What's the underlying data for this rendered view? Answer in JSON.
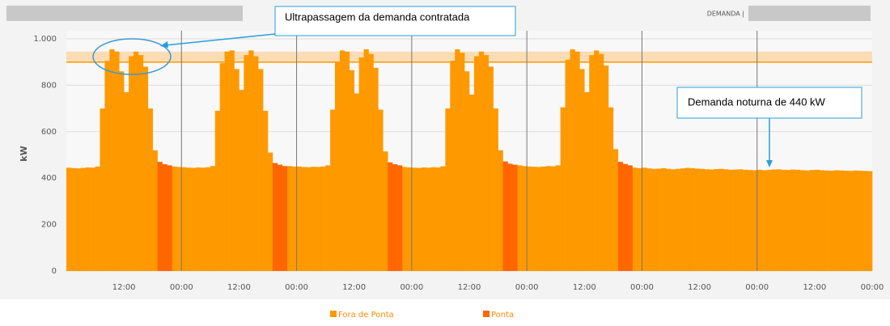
{
  "header": {
    "demand_label": "DEMANDA |"
  },
  "chart_data": {
    "type": "bar",
    "ylabel": "kW",
    "xlim": [
      0,
      168
    ],
    "ylim": [
      0,
      1000
    ],
    "yticks": [
      0,
      200,
      400,
      600,
      800,
      {
        "value": 1000,
        "label": "1.000"
      }
    ],
    "xticks": [
      {
        "value": 12,
        "label": "12:00"
      },
      {
        "value": 24,
        "label": "00:00"
      },
      {
        "value": 36,
        "label": "12:00"
      },
      {
        "value": 48,
        "label": "00:00"
      },
      {
        "value": 60,
        "label": "12:00"
      },
      {
        "value": 72,
        "label": "00:00"
      },
      {
        "value": 84,
        "label": "12:00"
      },
      {
        "value": 96,
        "label": "00:00"
      },
      {
        "value": 108,
        "label": "12:00"
      },
      {
        "value": 120,
        "label": "00:00"
      },
      {
        "value": 132,
        "label": "12:00"
      },
      {
        "value": 144,
        "label": "00:00"
      },
      {
        "value": 156,
        "label": "12:00"
      },
      {
        "value": 168,
        "label": "00:00"
      }
    ],
    "grid": true,
    "reference_line": 900,
    "band": [
      900,
      945
    ],
    "annotations": [
      "Ultrapassagem da demanda contratada",
      "Demanda noturna de 440 kW"
    ],
    "x": [
      0,
      1,
      2,
      3,
      4,
      5,
      6,
      7,
      8,
      9,
      10,
      11,
      12,
      13,
      14,
      15,
      16,
      17,
      18,
      19,
      20,
      21,
      22,
      23,
      24,
      25,
      26,
      27,
      28,
      29,
      30,
      31,
      32,
      33,
      34,
      35,
      36,
      37,
      38,
      39,
      40,
      41,
      42,
      43,
      44,
      45,
      46,
      47,
      48,
      49,
      50,
      51,
      52,
      53,
      54,
      55,
      56,
      57,
      58,
      59,
      60,
      61,
      62,
      63,
      64,
      65,
      66,
      67,
      68,
      69,
      70,
      71,
      72,
      73,
      74,
      75,
      76,
      77,
      78,
      79,
      80,
      81,
      82,
      83,
      84,
      85,
      86,
      87,
      88,
      89,
      90,
      91,
      92,
      93,
      94,
      95,
      96,
      97,
      98,
      99,
      100,
      101,
      102,
      103,
      104,
      105,
      106,
      107,
      108,
      109,
      110,
      111,
      112,
      113,
      114,
      115,
      116,
      117,
      118,
      119,
      120,
      121,
      122,
      123,
      124,
      125,
      126,
      127,
      128,
      129,
      130,
      131,
      132,
      133,
      134,
      135,
      136,
      137,
      138,
      139,
      140,
      141,
      142,
      143,
      144,
      145,
      146,
      147,
      148,
      149,
      150,
      151,
      152,
      153,
      154,
      155,
      156,
      157,
      158,
      159,
      160,
      161,
      162,
      163,
      164,
      165,
      166,
      167
    ],
    "series": [
      {
        "name": "Fora de Ponta",
        "color": "#ff9900",
        "values": [
          445,
          443,
          442,
          444,
          446,
          445,
          450,
          700,
          905,
          955,
          945,
          860,
          770,
          925,
          945,
          930,
          880,
          700,
          520,
          null,
          null,
          null,
          450,
          448,
          447,
          445,
          444,
          446,
          445,
          447,
          452,
          690,
          895,
          945,
          950,
          870,
          780,
          930,
          950,
          925,
          870,
          690,
          510,
          null,
          null,
          null,
          452,
          450,
          450,
          448,
          447,
          449,
          448,
          450,
          455,
          695,
          900,
          950,
          945,
          865,
          765,
          920,
          955,
          935,
          875,
          695,
          515,
          null,
          null,
          null,
          448,
          446,
          445,
          444,
          446,
          445,
          447,
          446,
          451,
          700,
          905,
          955,
          940,
          860,
          760,
          925,
          945,
          930,
          880,
          700,
          520,
          null,
          null,
          null,
          455,
          452,
          450,
          449,
          448,
          450,
          452,
          451,
          455,
          705,
          910,
          955,
          945,
          870,
          770,
          930,
          950,
          935,
          885,
          705,
          525,
          null,
          null,
          null,
          445,
          443,
          445,
          442,
          440,
          441,
          443,
          440,
          438,
          440,
          442,
          444,
          443,
          441,
          440,
          438,
          437,
          439,
          440,
          438,
          436,
          437,
          438,
          436,
          435,
          434,
          436,
          434,
          435,
          437,
          438,
          436,
          435,
          437,
          436,
          434,
          433,
          435,
          436,
          434,
          433,
          432,
          434,
          433,
          432,
          431,
          433,
          432,
          431,
          430
        ]
      },
      {
        "name": "Ponta",
        "color": "#ff6600",
        "values": [
          null,
          null,
          null,
          null,
          null,
          null,
          null,
          null,
          null,
          null,
          null,
          null,
          null,
          null,
          null,
          null,
          null,
          null,
          null,
          470,
          460,
          455,
          null,
          null,
          null,
          null,
          null,
          null,
          null,
          null,
          null,
          null,
          null,
          null,
          null,
          null,
          null,
          null,
          null,
          null,
          null,
          null,
          null,
          465,
          458,
          452,
          null,
          null,
          null,
          null,
          null,
          null,
          null,
          null,
          null,
          null,
          null,
          null,
          null,
          null,
          null,
          null,
          null,
          null,
          null,
          null,
          null,
          468,
          460,
          455,
          null,
          null,
          null,
          null,
          null,
          null,
          null,
          null,
          null,
          null,
          null,
          null,
          null,
          null,
          null,
          null,
          null,
          null,
          null,
          null,
          null,
          472,
          462,
          458,
          null,
          null,
          null,
          null,
          null,
          null,
          null,
          null,
          null,
          null,
          null,
          null,
          null,
          null,
          null,
          null,
          null,
          null,
          null,
          null,
          null,
          470,
          461,
          455,
          null,
          null,
          null,
          null,
          null,
          null,
          null,
          null,
          null,
          null,
          null,
          null,
          null,
          null,
          null,
          null,
          null,
          null,
          null,
          null,
          null,
          null,
          null,
          null,
          null,
          null,
          null,
          null,
          null,
          null,
          null,
          null,
          null,
          null,
          null,
          null,
          null,
          null,
          null,
          null,
          null,
          null,
          null,
          null,
          null,
          null,
          null,
          null,
          null,
          null
        ]
      }
    ]
  }
}
